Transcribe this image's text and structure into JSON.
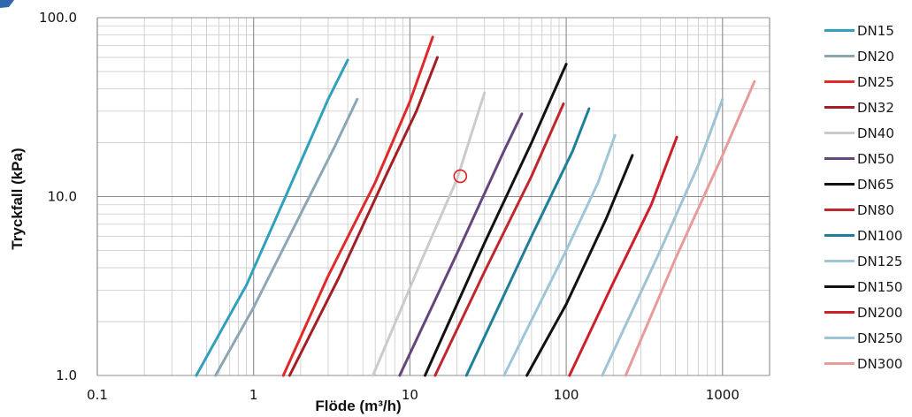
{
  "chart_data": {
    "type": "line",
    "title": "",
    "xlabel": "Flöde (m³/h)",
    "ylabel": "Tryckfall (kPa)",
    "x_scale": "log",
    "y_scale": "log",
    "xlim": [
      0.1,
      2000
    ],
    "ylim": [
      1.0,
      100.0
    ],
    "x_ticks": [
      "0.1",
      "1",
      "10",
      "100",
      "1000"
    ],
    "y_ticks": [
      "1.0",
      "10.0",
      "100.0"
    ],
    "grid": true,
    "legend_position": "right",
    "series": [
      {
        "name": "DN15",
        "color": "#31a0bd",
        "x": [
          0.43,
          0.9,
          1.6,
          3.0,
          4.0
        ],
        "y": [
          1.0,
          3.2,
          10.0,
          35.0,
          58.0
        ]
      },
      {
        "name": "DN20",
        "color": "#8ca6b3",
        "x": [
          0.57,
          1.0,
          2.0,
          3.3,
          4.6
        ],
        "y": [
          1.0,
          2.4,
          8.0,
          19.0,
          35.0
        ]
      },
      {
        "name": "DN25",
        "color": "#e02a2a",
        "x": [
          1.55,
          3.0,
          6.0,
          10.0,
          14.0
        ],
        "y": [
          1.0,
          3.6,
          12.0,
          34.0,
          78.0
        ]
      },
      {
        "name": "DN32",
        "color": "#a31f24",
        "x": [
          1.7,
          3.5,
          7.0,
          11.0,
          15.0
        ],
        "y": [
          1.0,
          3.5,
          13.0,
          30.0,
          60.0
        ]
      },
      {
        "name": "DN40",
        "color": "#cbcbcb",
        "x": [
          5.8,
          12.0,
          20.0,
          30.0
        ],
        "y": [
          1.0,
          4.5,
          12.5,
          38.0
        ]
      },
      {
        "name": "DN50",
        "color": "#65467c",
        "x": [
          8.6,
          20.0,
          40.0,
          52.0
        ],
        "y": [
          1.0,
          4.8,
          18.0,
          29.0
        ]
      },
      {
        "name": "DN65",
        "color": "#111111",
        "x": [
          12.5,
          30.0,
          60.0,
          100.0
        ],
        "y": [
          1.0,
          5.5,
          20.0,
          55.0
        ]
      },
      {
        "name": "DN80",
        "color": "#c0262d",
        "x": [
          14.5,
          30.0,
          60.0,
          96.0
        ],
        "y": [
          1.0,
          3.8,
          13.0,
          33.0
        ]
      },
      {
        "name": "DN100",
        "color": "#1f7f99",
        "x": [
          23.0,
          60.0,
          110.0,
          140.0
        ],
        "y": [
          1.0,
          6.0,
          18.0,
          31.0
        ]
      },
      {
        "name": "DN125",
        "color": "#9fc6d8",
        "x": [
          40.0,
          100.0,
          160.0,
          205.0
        ],
        "y": [
          1.0,
          5.0,
          12.0,
          22.0
        ]
      },
      {
        "name": "DN150",
        "color": "#111111",
        "x": [
          56.0,
          100.0,
          180.0,
          265.0
        ],
        "y": [
          1.0,
          2.5,
          7.5,
          17.0
        ]
      },
      {
        "name": "DN200",
        "color": "#cc1f2a",
        "x": [
          105.0,
          200.0,
          350.0,
          510.0
        ],
        "y": [
          1.0,
          3.3,
          9.0,
          21.5
        ]
      },
      {
        "name": "DN250",
        "color": "#9dc3d5",
        "x": [
          170.0,
          400.0,
          700.0,
          1000.0
        ],
        "y": [
          1.0,
          5.0,
          15.0,
          35.0
        ]
      },
      {
        "name": "DN300",
        "color": "#e79b9b",
        "x": [
          240.0,
          500.0,
          1000.0,
          1600.0
        ],
        "y": [
          1.0,
          4.5,
          17.0,
          44.0
        ]
      }
    ],
    "marker": {
      "x": 21.0,
      "y": 13.0,
      "color": "#e02020",
      "shape": "circle-outline"
    }
  }
}
